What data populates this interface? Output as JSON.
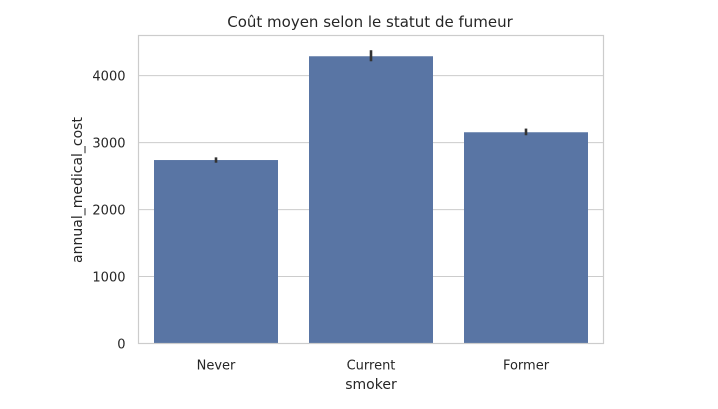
{
  "chart_data": {
    "type": "bar",
    "title": "Coût moyen selon le statut de fumeur",
    "xlabel": "smoker",
    "ylabel": "annual_medical_cost",
    "categories": [
      "Never",
      "Current",
      "Former"
    ],
    "values": [
      2740,
      4290,
      3155
    ],
    "error_bars": [
      [
        2700,
        2780
      ],
      [
        4215,
        4380
      ],
      [
        3110,
        3210
      ]
    ],
    "ylim": [
      0,
      4600
    ],
    "yticks": [
      0,
      1000,
      2000,
      3000,
      4000
    ],
    "grid": true,
    "bar_color": "#5975a4",
    "error_bar_color": "#333333"
  }
}
